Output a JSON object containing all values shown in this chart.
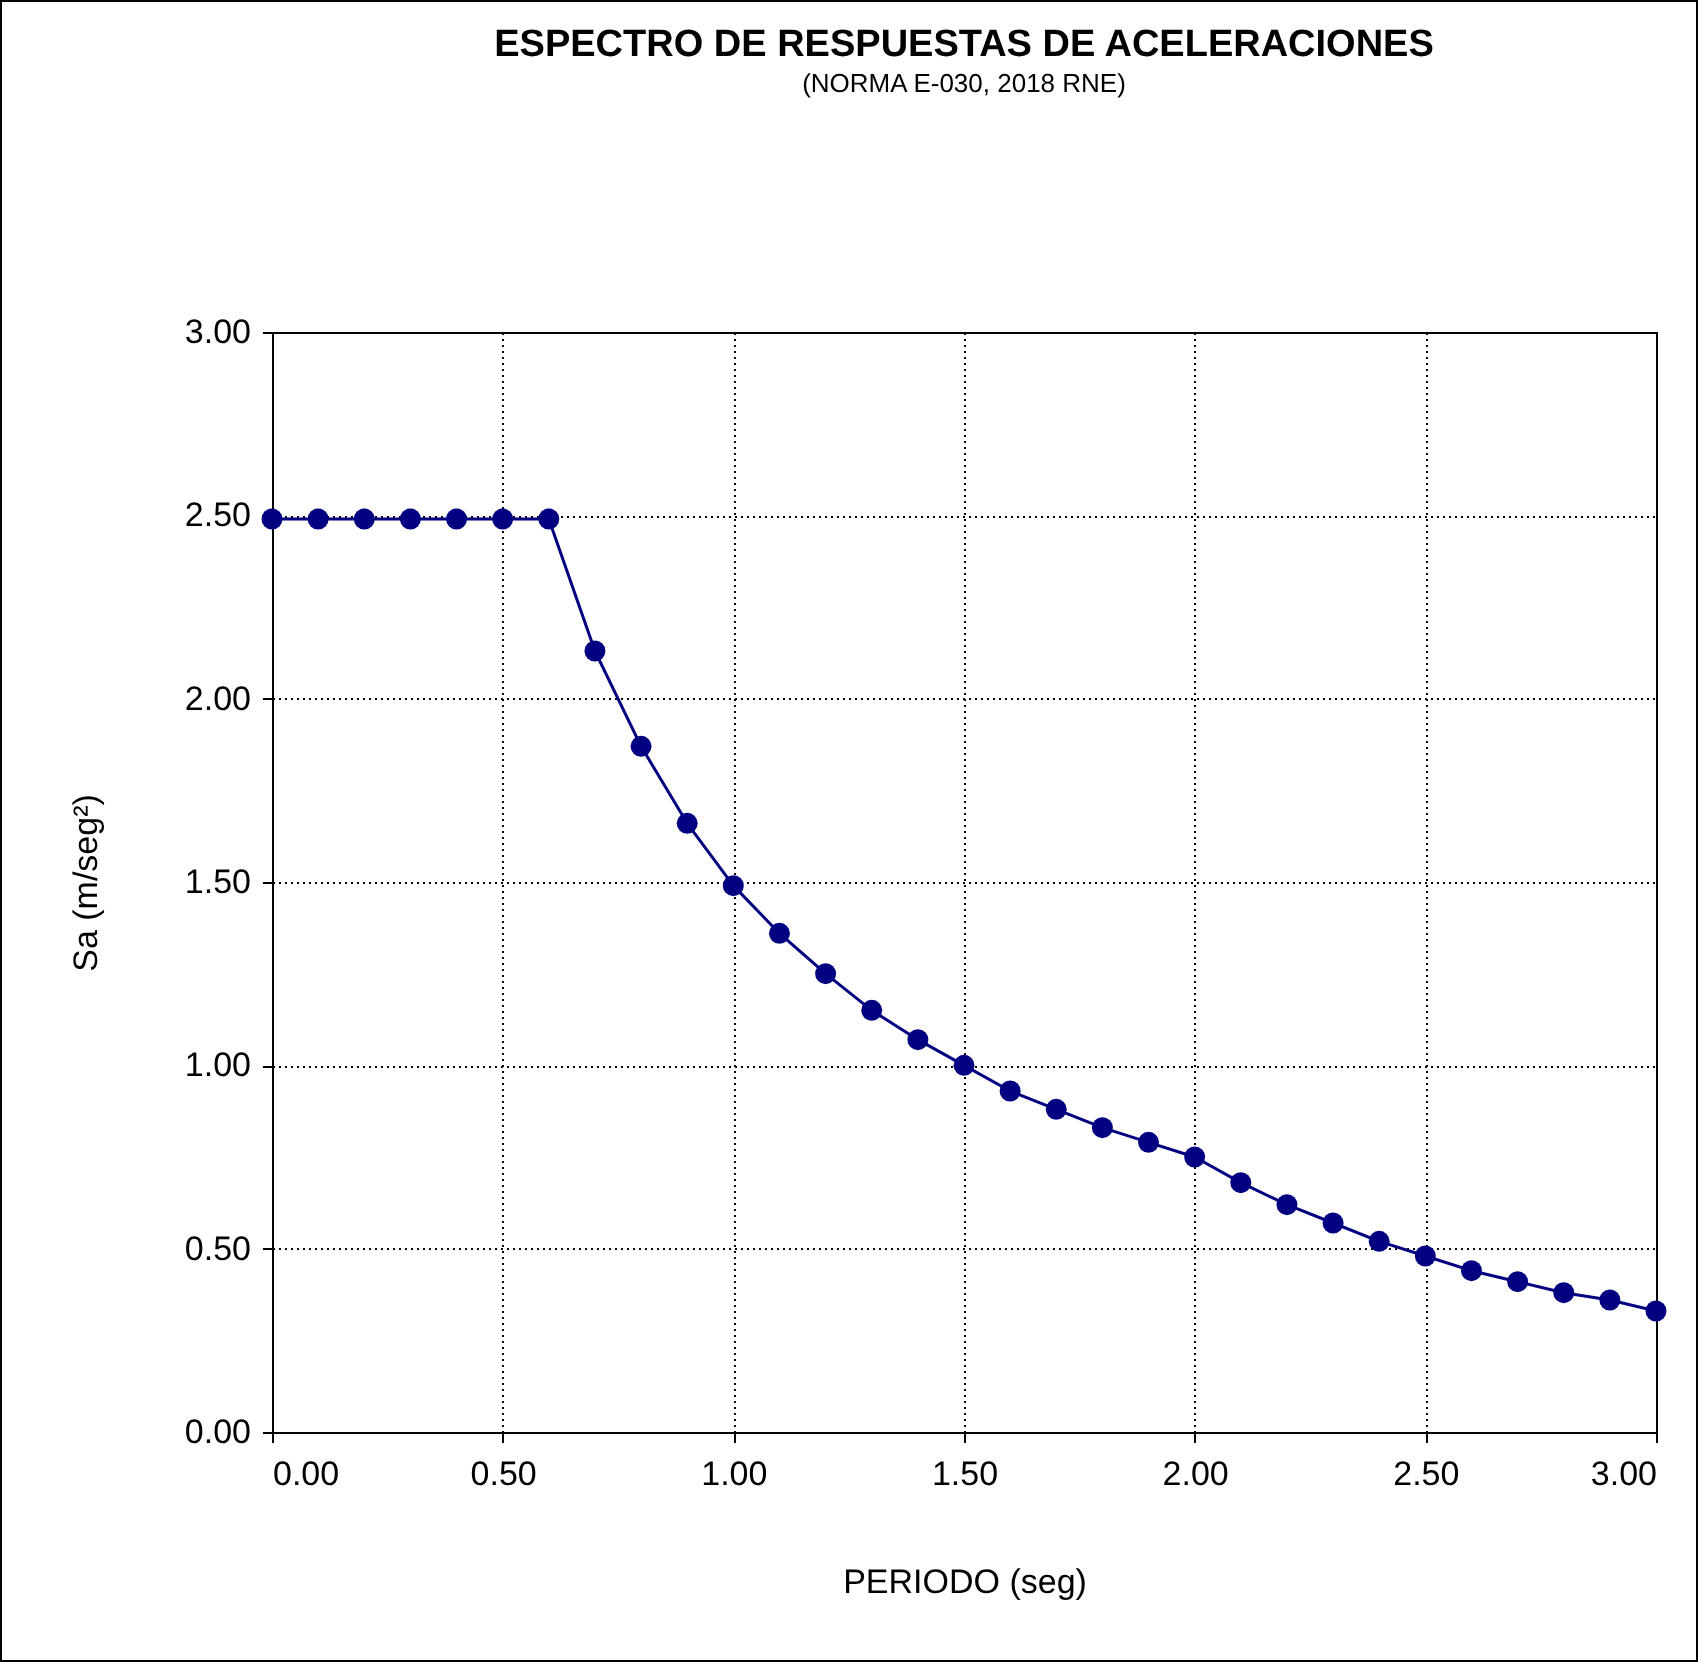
{
  "chart_data": {
    "type": "line",
    "title": "ESPECTRO DE RESPUESTAS DE ACELERACIONES",
    "subtitle": "(NORMA E-030, 2018 RNE)",
    "xlabel": "PERIODO (seg)",
    "ylabel": "Sa (m/seg²)",
    "x": [
      0,
      0.1,
      0.2,
      0.3,
      0.4,
      0.5,
      0.6,
      0.7,
      0.8,
      0.9,
      1.0,
      1.1,
      1.2,
      1.3,
      1.4,
      1.5,
      1.6,
      1.7,
      1.8,
      1.9,
      2.0,
      2.1,
      2.2,
      2.3,
      2.4,
      2.5,
      2.6,
      2.7,
      2.8,
      2.9,
      3.0
    ],
    "series": [
      {
        "color": "#000080",
        "values": [
          2.49,
          2.49,
          2.49,
          2.49,
          2.49,
          2.49,
          2.49,
          2.13,
          1.87,
          1.66,
          1.49,
          1.36,
          1.25,
          1.15,
          1.07,
          1.0,
          0.93,
          0.88,
          0.83,
          0.79,
          0.75,
          0.68,
          0.62,
          0.57,
          0.52,
          0.48,
          0.44,
          0.41,
          0.38,
          0.36,
          0.33
        ]
      }
    ],
    "xlim": [
      0,
      3
    ],
    "xticks": [
      {
        "value": 0,
        "label": "0.00"
      },
      {
        "value": 0.5,
        "label": "0.50"
      },
      {
        "value": 1,
        "label": "1.00"
      },
      {
        "value": 1.5,
        "label": "1.50"
      },
      {
        "value": 2,
        "label": "2.00"
      },
      {
        "value": 2.5,
        "label": "2.50"
      },
      {
        "value": 3,
        "label": "3.00"
      }
    ],
    "ylim": [
      0,
      3
    ],
    "yticks": [
      {
        "value": 0,
        "label": "0.00"
      },
      {
        "value": 0.5,
        "label": "0.50"
      },
      {
        "value": 1,
        "label": "1.00"
      },
      {
        "value": 1.5,
        "label": "1.50"
      },
      {
        "value": 2,
        "label": "2.00"
      },
      {
        "value": 2.5,
        "label": "2.50"
      },
      {
        "value": 3,
        "label": "3.00"
      }
    ],
    "grid": true,
    "marker": "circle",
    "line_style": "solid"
  }
}
